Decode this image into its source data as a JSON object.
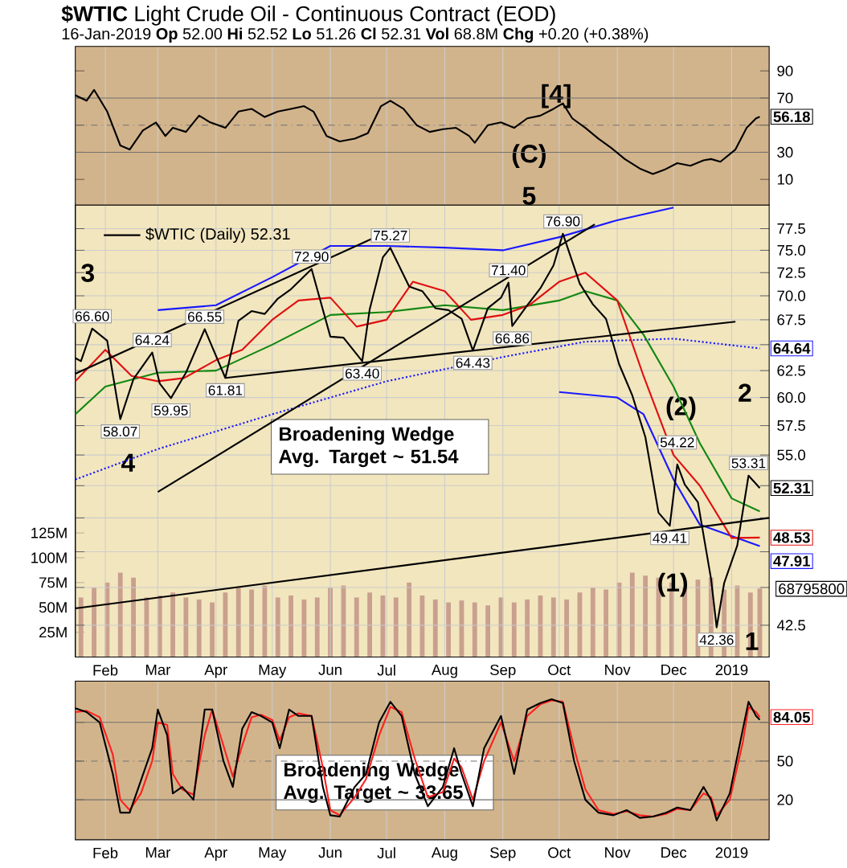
{
  "chart_data": [
    {
      "type": "line",
      "title": "**$WTIC** Light Crude Oil - Continuous Contract (EOD)",
      "subtitle": "16-Jan-2019 **Op** 52.00 **Hi** 52.52 **Lo** 51.26 **Cl** 52.31 **Vol** 68.8M **Chg** +0.20 (+0.38%)",
      "xlim": [
        "2018-01-16",
        "2019-01-21"
      ],
      "xticks": [
        {
          "value": "2018-02-01",
          "label": null
        },
        {
          "value": "2018-03-01",
          "label": null
        },
        {
          "value": "2018-04-01",
          "label": null
        },
        {
          "value": "2018-05-01",
          "label": null
        },
        {
          "value": "2018-06-01",
          "label": null
        },
        {
          "value": "2018-07-01",
          "label": null
        },
        {
          "value": "2018-08-01",
          "label": null
        },
        {
          "value": "2018-09-01",
          "label": null
        },
        {
          "value": "2018-10-01",
          "label": null
        },
        {
          "value": "2018-11-01",
          "label": null
        },
        {
          "value": "2018-12-01",
          "label": null
        },
        {
          "value": "2019-01-01",
          "label": null
        }
      ],
      "ylim": [
        -9,
        108
      ],
      "yticks": [
        10,
        30,
        {
          "value": 50,
          "label": null
        },
        70,
        90
      ],
      "grid": "x",
      "tick_labels": "y",
      "series": [
        {
          "color": "#000000",
          "x": [
            "2018-01-16",
            "2018-01-22",
            "2018-01-26",
            "2018-02-02",
            "2018-02-09",
            "2018-02-14",
            "2018-02-21",
            "2018-02-28",
            "2018-03-05",
            "2018-03-09",
            "2018-03-16",
            "2018-03-23",
            "2018-03-29",
            "2018-04-06",
            "2018-04-13",
            "2018-04-20",
            "2018-04-27",
            "2018-05-04",
            "2018-05-11",
            "2018-05-18",
            "2018-05-23",
            "2018-05-30",
            "2018-06-06",
            "2018-06-14",
            "2018-06-21",
            "2018-06-28",
            "2018-07-03",
            "2018-07-10",
            "2018-07-17",
            "2018-07-24",
            "2018-07-31",
            "2018-08-07",
            "2018-08-14",
            "2018-08-17",
            "2018-08-24",
            "2018-08-31",
            "2018-09-07",
            "2018-09-14",
            "2018-09-21",
            "2018-09-28",
            "2018-10-03",
            "2018-10-08",
            "2018-10-15",
            "2018-10-22",
            "2018-10-29",
            "2018-11-05",
            "2018-11-13",
            "2018-11-20",
            "2018-11-26",
            "2018-12-03",
            "2018-12-10",
            "2018-12-17",
            "2018-12-21",
            "2018-12-26",
            "2019-01-03",
            "2019-01-09",
            "2019-01-14",
            "2019-01-16"
          ],
          "values": [
            72,
            68,
            76,
            60,
            35,
            32,
            46,
            52,
            42,
            48,
            45,
            57,
            52,
            48,
            60,
            62,
            56,
            60,
            62,
            64,
            60,
            42,
            38,
            40,
            44,
            64,
            68,
            62,
            50,
            45,
            47,
            48,
            42,
            37,
            50,
            52,
            48,
            55,
            57,
            62,
            66,
            55,
            48,
            40,
            33,
            25,
            18,
            14,
            17,
            22,
            20,
            24,
            25,
            23,
            32,
            48,
            55,
            56.18
          ],
          "value_labels": [
            null,
            null,
            null,
            null,
            null,
            null,
            null,
            null,
            null,
            null,
            null,
            null,
            null,
            null,
            null,
            null,
            null,
            null,
            null,
            null,
            null,
            null,
            null,
            null,
            null,
            null,
            null,
            null,
            null,
            null,
            null,
            null,
            null,
            null,
            null,
            null,
            null,
            null,
            null,
            null,
            null,
            null,
            null,
            null,
            null,
            null,
            null,
            null,
            null,
            null,
            null,
            null,
            null,
            null,
            null,
            null,
            null,
            "56.18"
          ]
        }
      ],
      "ref_lines": [
        {
          "axis": "y",
          "value": 30,
          "color": "#707070"
        },
        {
          "axis": "y",
          "value": 70,
          "color": "#707070"
        },
        {
          "axis": "y",
          "value": 50,
          "color": "#707070",
          "line_style": "dashed"
        }
      ],
      "annotations": [
        "[4]",
        "(C)"
      ]
    },
    {
      "type": "line",
      "xlim": [
        "2018-01-16",
        "2019-01-21"
      ],
      "xticks": [
        {
          "value": "2018-02-01",
          "label": "Feb"
        },
        {
          "value": "2018-03-01",
          "label": "Mar"
        },
        {
          "value": "2018-04-01",
          "label": "Apr"
        },
        {
          "value": "2018-05-01",
          "label": "May"
        },
        {
          "value": "2018-06-01",
          "label": "Jun"
        },
        {
          "value": "2018-07-01",
          "label": "Jul"
        },
        {
          "value": "2018-08-01",
          "label": "Aug"
        },
        {
          "value": "2018-09-01",
          "label": "Sep"
        },
        {
          "value": "2018-10-01",
          "label": "Oct"
        },
        {
          "value": "2018-11-01",
          "label": "Nov"
        },
        {
          "value": "2018-12-01",
          "label": "Dec"
        },
        {
          "value": "2019-01-01",
          "label": "2019"
        }
      ],
      "log": "y",
      "ylim": [
        40.5,
        80.3
      ],
      "yticks": [
        {
          "value": 42.5,
          "label": "42.5"
        },
        {
          "value": 45,
          "label": null
        },
        {
          "value": 47.5,
          "label": null
        },
        {
          "value": 50,
          "label": null
        },
        {
          "value": 52.5,
          "label": null
        },
        {
          "value": 55,
          "label": "55.0"
        },
        {
          "value": 57.5,
          "label": "57.5"
        },
        {
          "value": 60,
          "label": "60.0"
        },
        {
          "value": 62.5,
          "label": "62.5"
        },
        {
          "value": 65,
          "label": null
        },
        {
          "value": 67.5,
          "label": "67.5"
        },
        {
          "value": 70,
          "label": "70.0"
        },
        {
          "value": 72.5,
          "label": "72.5"
        },
        {
          "value": 75,
          "label": "75.0"
        },
        {
          "value": 77.5,
          "label": "77.5"
        }
      ],
      "y2lim": [
        0,
        455
      ],
      "y2ticks": [
        {
          "value": 25,
          "label": "25M"
        },
        {
          "value": 50,
          "label": "50M"
        },
        {
          "value": 75,
          "label": "75M"
        },
        {
          "value": 100,
          "label": "100M"
        },
        {
          "value": 125,
          "label": "125M"
        }
      ],
      "grid": true,
      "legend": "top left",
      "series": [
        {
          "type": "bar",
          "axis": "y2",
          "color": "#c9a08e",
          "x": [
            "2018-01-19",
            "2018-01-26",
            "2018-02-02",
            "2018-02-09",
            "2018-02-16",
            "2018-02-23",
            "2018-03-02",
            "2018-03-09",
            "2018-03-16",
            "2018-03-23",
            "2018-03-30",
            "2018-04-06",
            "2018-04-13",
            "2018-04-20",
            "2018-04-27",
            "2018-05-04",
            "2018-05-11",
            "2018-05-18",
            "2018-05-25",
            "2018-06-01",
            "2018-06-08",
            "2018-06-15",
            "2018-06-22",
            "2018-06-29",
            "2018-07-06",
            "2018-07-13",
            "2018-07-20",
            "2018-07-27",
            "2018-08-03",
            "2018-08-10",
            "2018-08-17",
            "2018-08-24",
            "2018-08-31",
            "2018-09-07",
            "2018-09-14",
            "2018-09-21",
            "2018-09-28",
            "2018-10-05",
            "2018-10-12",
            "2018-10-19",
            "2018-10-26",
            "2018-11-02",
            "2018-11-09",
            "2018-11-16",
            "2018-11-23",
            "2018-11-30",
            "2018-12-07",
            "2018-12-14",
            "2018-12-21",
            "2018-12-28",
            "2019-01-04",
            "2019-01-11",
            "2019-01-16"
          ],
          "values": [
            60,
            70,
            75,
            85,
            80,
            60,
            62,
            65,
            60,
            58,
            55,
            65,
            70,
            68,
            72,
            60,
            62,
            58,
            60,
            70,
            72,
            60,
            65,
            62,
            60,
            75,
            62,
            58,
            55,
            57,
            55,
            52,
            60,
            55,
            58,
            62,
            60,
            58,
            65,
            70,
            68,
            75,
            85,
            82,
            80,
            75,
            70,
            78,
            80,
            68,
            72,
            65,
            69
          ]
        },
        {
          "color": "#1a1aff",
          "x": [
            "2018-03-01",
            "2018-04-01",
            "2018-05-01",
            "2018-06-01",
            "2018-07-01",
            "2018-08-01",
            "2018-09-01",
            "2018-10-01",
            "2018-11-01",
            "2018-12-01"
          ],
          "values": [
            68.5,
            69.0,
            72.0,
            75.5,
            75.5,
            75.3,
            75.0,
            76.5,
            78.5,
            80.0
          ]
        },
        {
          "color": "#1a1aff",
          "x": [
            "2018-10-01",
            "2018-11-01",
            "2018-11-15",
            "2018-12-01",
            "2018-12-15",
            "2019-01-16"
          ],
          "values": [
            60.5,
            60.0,
            58.5,
            53.0,
            49.5,
            47.91
          ],
          "value_labels": [
            null,
            null,
            null,
            null,
            null,
            "47.91"
          ]
        },
        {
          "color": "#1a1aff",
          "line_style": "dotted",
          "x": [
            "2018-01-16",
            "2018-03-01",
            "2018-05-01",
            "2018-07-01",
            "2018-09-01",
            "2018-10-15",
            "2018-12-01",
            "2019-01-16"
          ],
          "values": [
            53.0,
            55.5,
            58.5,
            61.5,
            63.8,
            65.3,
            65.6,
            64.64
          ],
          "value_labels": [
            null,
            null,
            null,
            null,
            null,
            null,
            null,
            "64.64"
          ]
        },
        {
          "color": "#118811",
          "x": [
            "2018-01-16",
            "2018-02-01",
            "2018-03-01",
            "2018-04-01",
            "2018-05-01",
            "2018-06-01",
            "2018-07-01",
            "2018-08-01",
            "2018-09-01",
            "2018-10-01",
            "2018-10-15",
            "2018-11-01",
            "2018-11-15",
            "2018-12-01",
            "2018-12-15",
            "2019-01-01",
            "2019-01-16"
          ],
          "values": [
            58.5,
            61.0,
            62.3,
            62.5,
            65.0,
            68.0,
            68.3,
            69.0,
            68.5,
            69.5,
            70.5,
            69.5,
            66.0,
            61.0,
            56.0,
            51.5,
            50.5
          ]
        },
        {
          "color": "#e01010",
          "x": [
            "2018-01-16",
            "2018-02-01",
            "2018-02-15",
            "2018-03-01",
            "2018-03-15",
            "2018-04-01",
            "2018-04-15",
            "2018-05-01",
            "2018-05-15",
            "2018-06-01",
            "2018-06-15",
            "2018-07-01",
            "2018-07-15",
            "2018-08-01",
            "2018-08-15",
            "2018-09-01",
            "2018-09-15",
            "2018-10-01",
            "2018-10-15",
            "2018-11-01",
            "2018-11-15",
            "2018-12-01",
            "2018-12-15",
            "2019-01-01",
            "2019-01-16"
          ],
          "values": [
            61.5,
            64.5,
            62.0,
            61.5,
            61.8,
            63.5,
            64.5,
            67.5,
            69.5,
            69.8,
            66.8,
            67.5,
            71.5,
            70.5,
            67.5,
            68.0,
            69.0,
            71.5,
            72.5,
            69.5,
            62.0,
            55.0,
            52.5,
            48.5,
            48.53
          ],
          "value_labels": [
            null,
            null,
            null,
            null,
            null,
            null,
            null,
            null,
            null,
            null,
            null,
            null,
            null,
            null,
            null,
            null,
            null,
            null,
            null,
            null,
            null,
            null,
            null,
            null,
            "48.53"
          ]
        },
        {
          "color": "#000000",
          "x": [
            "2018-01-16",
            "2018-07-05"
          ],
          "values": [
            62.2,
            77.5
          ]
        },
        {
          "color": "#000000",
          "x": [
            "2018-01-16",
            "2019-01-21"
          ],
          "values": [
            43.6,
            50.0
          ]
        },
        {
          "color": "#000000",
          "x": [
            "2018-03-01",
            "2018-10-20"
          ],
          "values": [
            52.0,
            78.0
          ]
        },
        {
          "color": "#000000",
          "x": [
            "2018-04-06",
            "2019-01-03"
          ],
          "values": [
            61.81,
            67.3
          ]
        },
        {
          "name": "$WTIC (Daily) 52.31",
          "color": "#000000",
          "x": [
            "2018-01-16",
            "2018-01-19",
            "2018-01-25",
            "2018-02-02",
            "2018-02-09",
            "2018-02-16",
            "2018-02-26",
            "2018-03-02",
            "2018-03-08",
            "2018-03-16",
            "2018-03-26",
            "2018-04-06",
            "2018-04-13",
            "2018-04-20",
            "2018-04-27",
            "2018-05-04",
            "2018-05-11",
            "2018-05-22",
            "2018-06-01",
            "2018-06-08",
            "2018-06-18",
            "2018-06-22",
            "2018-06-29",
            "2018-07-03",
            "2018-07-13",
            "2018-07-20",
            "2018-07-27",
            "2018-08-03",
            "2018-08-10",
            "2018-08-16",
            "2018-08-24",
            "2018-08-31",
            "2018-09-04",
            "2018-09-06",
            "2018-09-14",
            "2018-09-21",
            "2018-09-28",
            "2018-10-03",
            "2018-10-12",
            "2018-10-19",
            "2018-10-26",
            "2018-11-02",
            "2018-11-09",
            "2018-11-16",
            "2018-11-23",
            "2018-11-29",
            "2018-12-03",
            "2018-12-07",
            "2018-12-14",
            "2018-12-21",
            "2018-12-24",
            "2018-12-28",
            "2019-01-04",
            "2019-01-10",
            "2019-01-16"
          ],
          "values": [
            63.7,
            63.4,
            66.6,
            65.4,
            58.07,
            61.7,
            64.24,
            61.3,
            59.95,
            62.3,
            66.55,
            61.81,
            67.4,
            68.4,
            68.1,
            69.7,
            70.7,
            72.9,
            65.8,
            65.7,
            63.4,
            68.6,
            74.2,
            75.27,
            71.0,
            70.5,
            68.7,
            68.5,
            67.6,
            64.43,
            68.7,
            69.8,
            71.4,
            66.86,
            68.99,
            70.8,
            73.3,
            76.9,
            71.3,
            69.1,
            67.6,
            63.1,
            60.2,
            56.5,
            50.4,
            49.41,
            54.22,
            52.6,
            51.2,
            45.6,
            42.36,
            45.3,
            47.96,
            53.31,
            52.31
          ],
          "value_labels": [
            null,
            null,
            null,
            null,
            null,
            null,
            null,
            null,
            null,
            null,
            null,
            null,
            null,
            null,
            null,
            null,
            null,
            null,
            null,
            null,
            null,
            null,
            null,
            null,
            null,
            null,
            null,
            null,
            null,
            null,
            null,
            null,
            null,
            null,
            null,
            null,
            null,
            null,
            null,
            null,
            null,
            null,
            null,
            null,
            null,
            null,
            null,
            null,
            null,
            null,
            null,
            null,
            null,
            null,
            "52.31"
          ]
        }
      ],
      "annotations": [
        "3",
        "4",
        "5",
        "(2)",
        "(1)",
        "2",
        "1",
        {
          "text": "66.60",
          "x": "2018-01-25",
          "y": 66.6
        },
        {
          "text": "64.24",
          "x": "2018-02-26",
          "y": 64.24
        },
        {
          "text": "58.07",
          "x": "2018-02-09",
          "y": 58.07
        },
        {
          "text": "59.95",
          "x": "2018-03-08",
          "y": 59.95
        },
        {
          "text": "66.55",
          "x": "2018-03-26",
          "y": 66.55
        },
        {
          "text": "61.81",
          "x": "2018-04-06",
          "y": 61.81
        },
        {
          "text": "72.90",
          "x": "2018-05-22",
          "y": 72.9
        },
        {
          "text": "63.40",
          "x": "2018-06-18",
          "y": 63.4
        },
        {
          "text": "75.27",
          "x": "2018-07-03",
          "y": 75.27
        },
        {
          "text": "64.43",
          "x": "2018-08-16",
          "y": 64.43
        },
        {
          "text": "71.40",
          "x": "2018-09-04",
          "y": 71.4
        },
        {
          "text": "66.86",
          "x": "2018-09-06",
          "y": 66.86
        },
        {
          "text": "76.90",
          "x": "2018-10-03",
          "y": 76.9
        },
        {
          "text": "49.41",
          "x": "2018-11-29",
          "y": 49.41
        },
        {
          "text": "54.22",
          "x": "2018-12-03",
          "y": 54.22
        },
        {
          "text": "42.36",
          "x": "2018-12-24",
          "y": 42.36
        },
        {
          "text": "53.31",
          "x": "2019-01-10",
          "y": 53.31
        },
        "Broadening Wedge Avg. Target ~ 51.54",
        "68795800"
      ]
    },
    {
      "type": "line",
      "xlim": [
        "2018-01-16",
        "2019-01-21"
      ],
      "xticks": [
        {
          "value": "2018-02-01",
          "label": "Feb"
        },
        {
          "value": "2018-03-01",
          "label": "Mar"
        },
        {
          "value": "2018-04-01",
          "label": "Apr"
        },
        {
          "value": "2018-05-01",
          "label": "May"
        },
        {
          "value": "2018-06-01",
          "label": "Jun"
        },
        {
          "value": "2018-07-01",
          "label": "Jul"
        },
        {
          "value": "2018-08-01",
          "label": "Aug"
        },
        {
          "value": "2018-09-01",
          "label": "Sep"
        },
        {
          "value": "2018-10-01",
          "label": "Oct"
        },
        {
          "value": "2018-11-01",
          "label": "Nov"
        },
        {
          "value": "2018-12-01",
          "label": "Dec"
        },
        {
          "value": "2019-01-01",
          "label": "2019"
        }
      ],
      "ylim": [
        -11,
        112
      ],
      "yticks": [
        20,
        50,
        {
          "value": 80,
          "label": null
        }
      ],
      "grid": "x",
      "series": [
        {
          "color": "#ff2020",
          "x": [
            "2018-01-16",
            "2018-01-22",
            "2018-01-29",
            "2018-02-05",
            "2018-02-09",
            "2018-02-14",
            "2018-02-20",
            "2018-02-26",
            "2018-03-01",
            "2018-03-06",
            "2018-03-09",
            "2018-03-14",
            "2018-03-20",
            "2018-03-26",
            "2018-03-30",
            "2018-04-05",
            "2018-04-10",
            "2018-04-15",
            "2018-04-20",
            "2018-04-25",
            "2018-05-01",
            "2018-05-05",
            "2018-05-10",
            "2018-05-15",
            "2018-05-22",
            "2018-05-28",
            "2018-06-01",
            "2018-06-06",
            "2018-06-14",
            "2018-06-20",
            "2018-06-27",
            "2018-07-03",
            "2018-07-09",
            "2018-07-16",
            "2018-07-23",
            "2018-07-31",
            "2018-08-06",
            "2018-08-10",
            "2018-08-16",
            "2018-08-22",
            "2018-08-31",
            "2018-09-07",
            "2018-09-14",
            "2018-09-21",
            "2018-09-27",
            "2018-10-03",
            "2018-10-09",
            "2018-10-15",
            "2018-10-22",
            "2018-10-30",
            "2018-11-06",
            "2018-11-13",
            "2018-11-20",
            "2018-11-27",
            "2018-12-03",
            "2018-12-10",
            "2018-12-17",
            "2018-12-21",
            "2018-12-24",
            "2018-12-31",
            "2019-01-07",
            "2019-01-10",
            "2019-01-14",
            "2019-01-16"
          ],
          "values": [
            88,
            89,
            84,
            55,
            20,
            12,
            25,
            50,
            80,
            78,
            40,
            28,
            24,
            70,
            90,
            62,
            38,
            62,
            84,
            86,
            82,
            66,
            84,
            87,
            85,
            45,
            12,
            8,
            22,
            36,
            70,
            92,
            88,
            52,
            22,
            26,
            52,
            45,
            20,
            50,
            80,
            50,
            85,
            94,
            97,
            96,
            60,
            28,
            12,
            9,
            11,
            8,
            7,
            9,
            13,
            12,
            25,
            22,
            8,
            20,
            65,
            92,
            88,
            84.05
          ],
          "value_labels": [
            null,
            null,
            null,
            null,
            null,
            null,
            null,
            null,
            null,
            null,
            null,
            null,
            null,
            null,
            null,
            null,
            null,
            null,
            null,
            null,
            null,
            null,
            null,
            null,
            null,
            null,
            null,
            null,
            null,
            null,
            null,
            null,
            null,
            null,
            null,
            null,
            null,
            null,
            null,
            null,
            null,
            null,
            null,
            null,
            null,
            null,
            null,
            null,
            null,
            null,
            null,
            null,
            null,
            null,
            null,
            null,
            null,
            null,
            null,
            null,
            null,
            null,
            null,
            "84.05"
          ]
        },
        {
          "color": "#000000",
          "x": [
            "2018-01-16",
            "2018-01-22",
            "2018-01-29",
            "2018-02-05",
            "2018-02-09",
            "2018-02-14",
            "2018-02-20",
            "2018-02-26",
            "2018-03-01",
            "2018-03-06",
            "2018-03-09",
            "2018-03-14",
            "2018-03-20",
            "2018-03-26",
            "2018-03-30",
            "2018-04-05",
            "2018-04-10",
            "2018-04-15",
            "2018-04-20",
            "2018-04-25",
            "2018-05-01",
            "2018-05-05",
            "2018-05-10",
            "2018-05-15",
            "2018-05-22",
            "2018-05-28",
            "2018-06-01",
            "2018-06-06",
            "2018-06-14",
            "2018-06-20",
            "2018-06-27",
            "2018-07-03",
            "2018-07-09",
            "2018-07-16",
            "2018-07-23",
            "2018-07-31",
            "2018-08-06",
            "2018-08-10",
            "2018-08-16",
            "2018-08-22",
            "2018-08-31",
            "2018-09-07",
            "2018-09-14",
            "2018-09-21",
            "2018-09-27",
            "2018-10-03",
            "2018-10-09",
            "2018-10-15",
            "2018-10-22",
            "2018-10-30",
            "2018-11-06",
            "2018-11-13",
            "2018-11-20",
            "2018-11-27",
            "2018-12-03",
            "2018-12-10",
            "2018-12-17",
            "2018-12-21",
            "2018-12-24",
            "2018-12-31",
            "2019-01-07",
            "2019-01-10",
            "2019-01-14",
            "2019-01-16"
          ],
          "values": [
            91,
            88,
            80,
            40,
            10,
            10,
            35,
            60,
            90,
            70,
            25,
            30,
            20,
            90,
            90,
            50,
            30,
            75,
            88,
            85,
            80,
            60,
            90,
            85,
            85,
            30,
            8,
            7,
            30,
            40,
            80,
            96,
            85,
            40,
            15,
            30,
            60,
            40,
            15,
            60,
            85,
            40,
            90,
            95,
            98,
            95,
            50,
            20,
            10,
            8,
            12,
            6,
            7,
            10,
            14,
            12,
            30,
            20,
            4,
            25,
            75,
            96,
            85,
            82
          ]
        }
      ],
      "ref_lines": [
        {
          "axis": "y",
          "value": 20,
          "color": "#707070"
        },
        {
          "axis": "y",
          "value": 80,
          "color": "#707070"
        },
        {
          "axis": "y",
          "value": 50,
          "color": "#707070",
          "line_style": "dashed"
        }
      ],
      "annotations": [
        "Broadening Wedge Avg. Target ~ 33.65"
      ]
    }
  ]
}
